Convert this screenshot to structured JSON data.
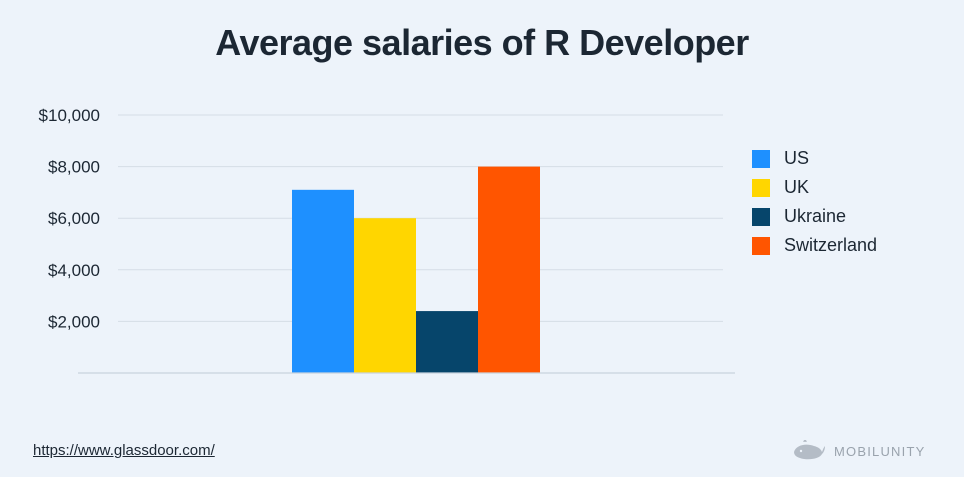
{
  "chart_data": {
    "type": "bar",
    "title": "Average salaries of R Developer",
    "xlabel": "",
    "ylabel": "",
    "ylim": [
      0,
      10000
    ],
    "y_ticks": [
      {
        "value": 2000,
        "label": "$2,000"
      },
      {
        "value": 4000,
        "label": "$4,000"
      },
      {
        "value": 6000,
        "label": "$6,000"
      },
      {
        "value": 8000,
        "label": "$8,000"
      },
      {
        "value": 10000,
        "label": "$10,000"
      }
    ],
    "grid": true,
    "legend_position": "right",
    "series": [
      {
        "name": "US",
        "value": 7100,
        "color": "#1e90ff"
      },
      {
        "name": "UK",
        "value": 6000,
        "color": "#ffd600"
      },
      {
        "name": "Ukraine",
        "value": 2400,
        "color": "#06456b"
      },
      {
        "name": "Switzerland",
        "value": 8000,
        "color": "#ff5500"
      }
    ]
  },
  "footer": {
    "source": "https://www.glassdoor.com/",
    "brand": "MOBILUNITY",
    "brand_icon": "whale-icon"
  }
}
